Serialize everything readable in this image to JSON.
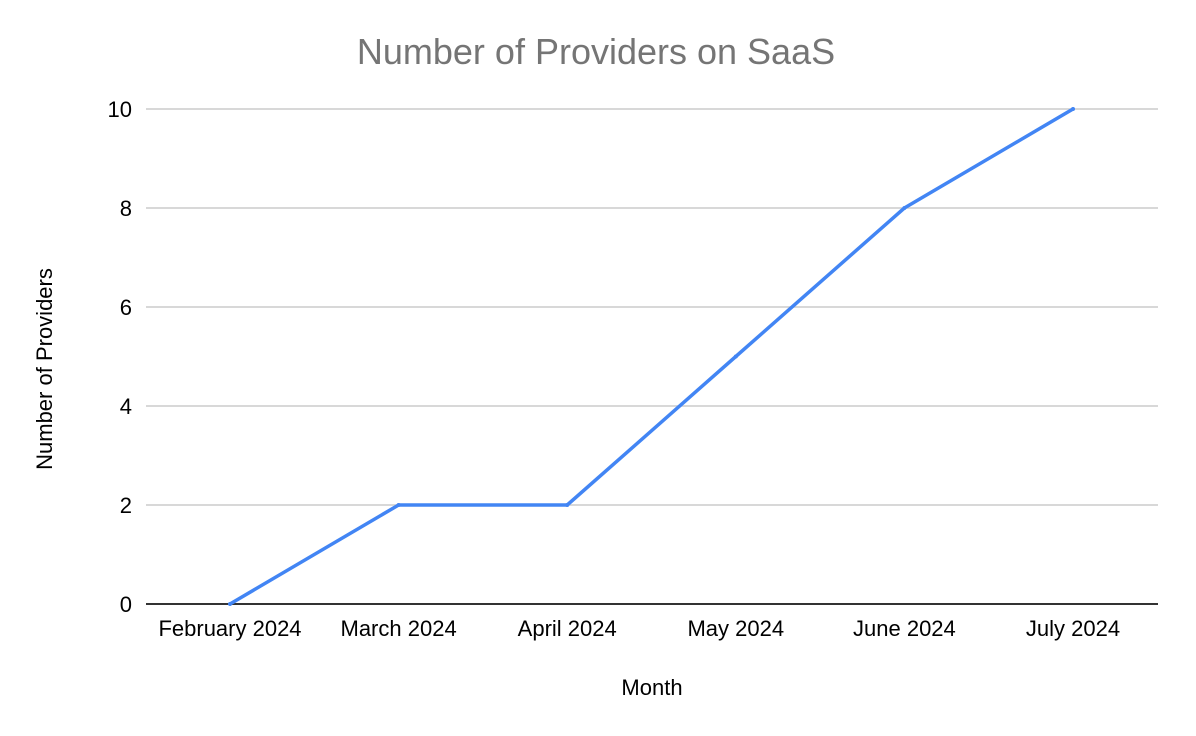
{
  "chart_data": {
    "type": "line",
    "title": "Number of Providers on SaaS",
    "xlabel": "Month",
    "ylabel": "Number of Providers",
    "categories": [
      "February 2024",
      "March 2024",
      "April 2024",
      "May 2024",
      "June 2024",
      "July 2024"
    ],
    "series": [
      {
        "values": [
          0,
          2,
          2,
          5,
          8,
          10
        ],
        "color": "#4285f4"
      }
    ],
    "ylim": [
      0,
      10
    ],
    "yticks": [
      0,
      2,
      4,
      6,
      8,
      10
    ],
    "grid": true,
    "legend": "none"
  }
}
